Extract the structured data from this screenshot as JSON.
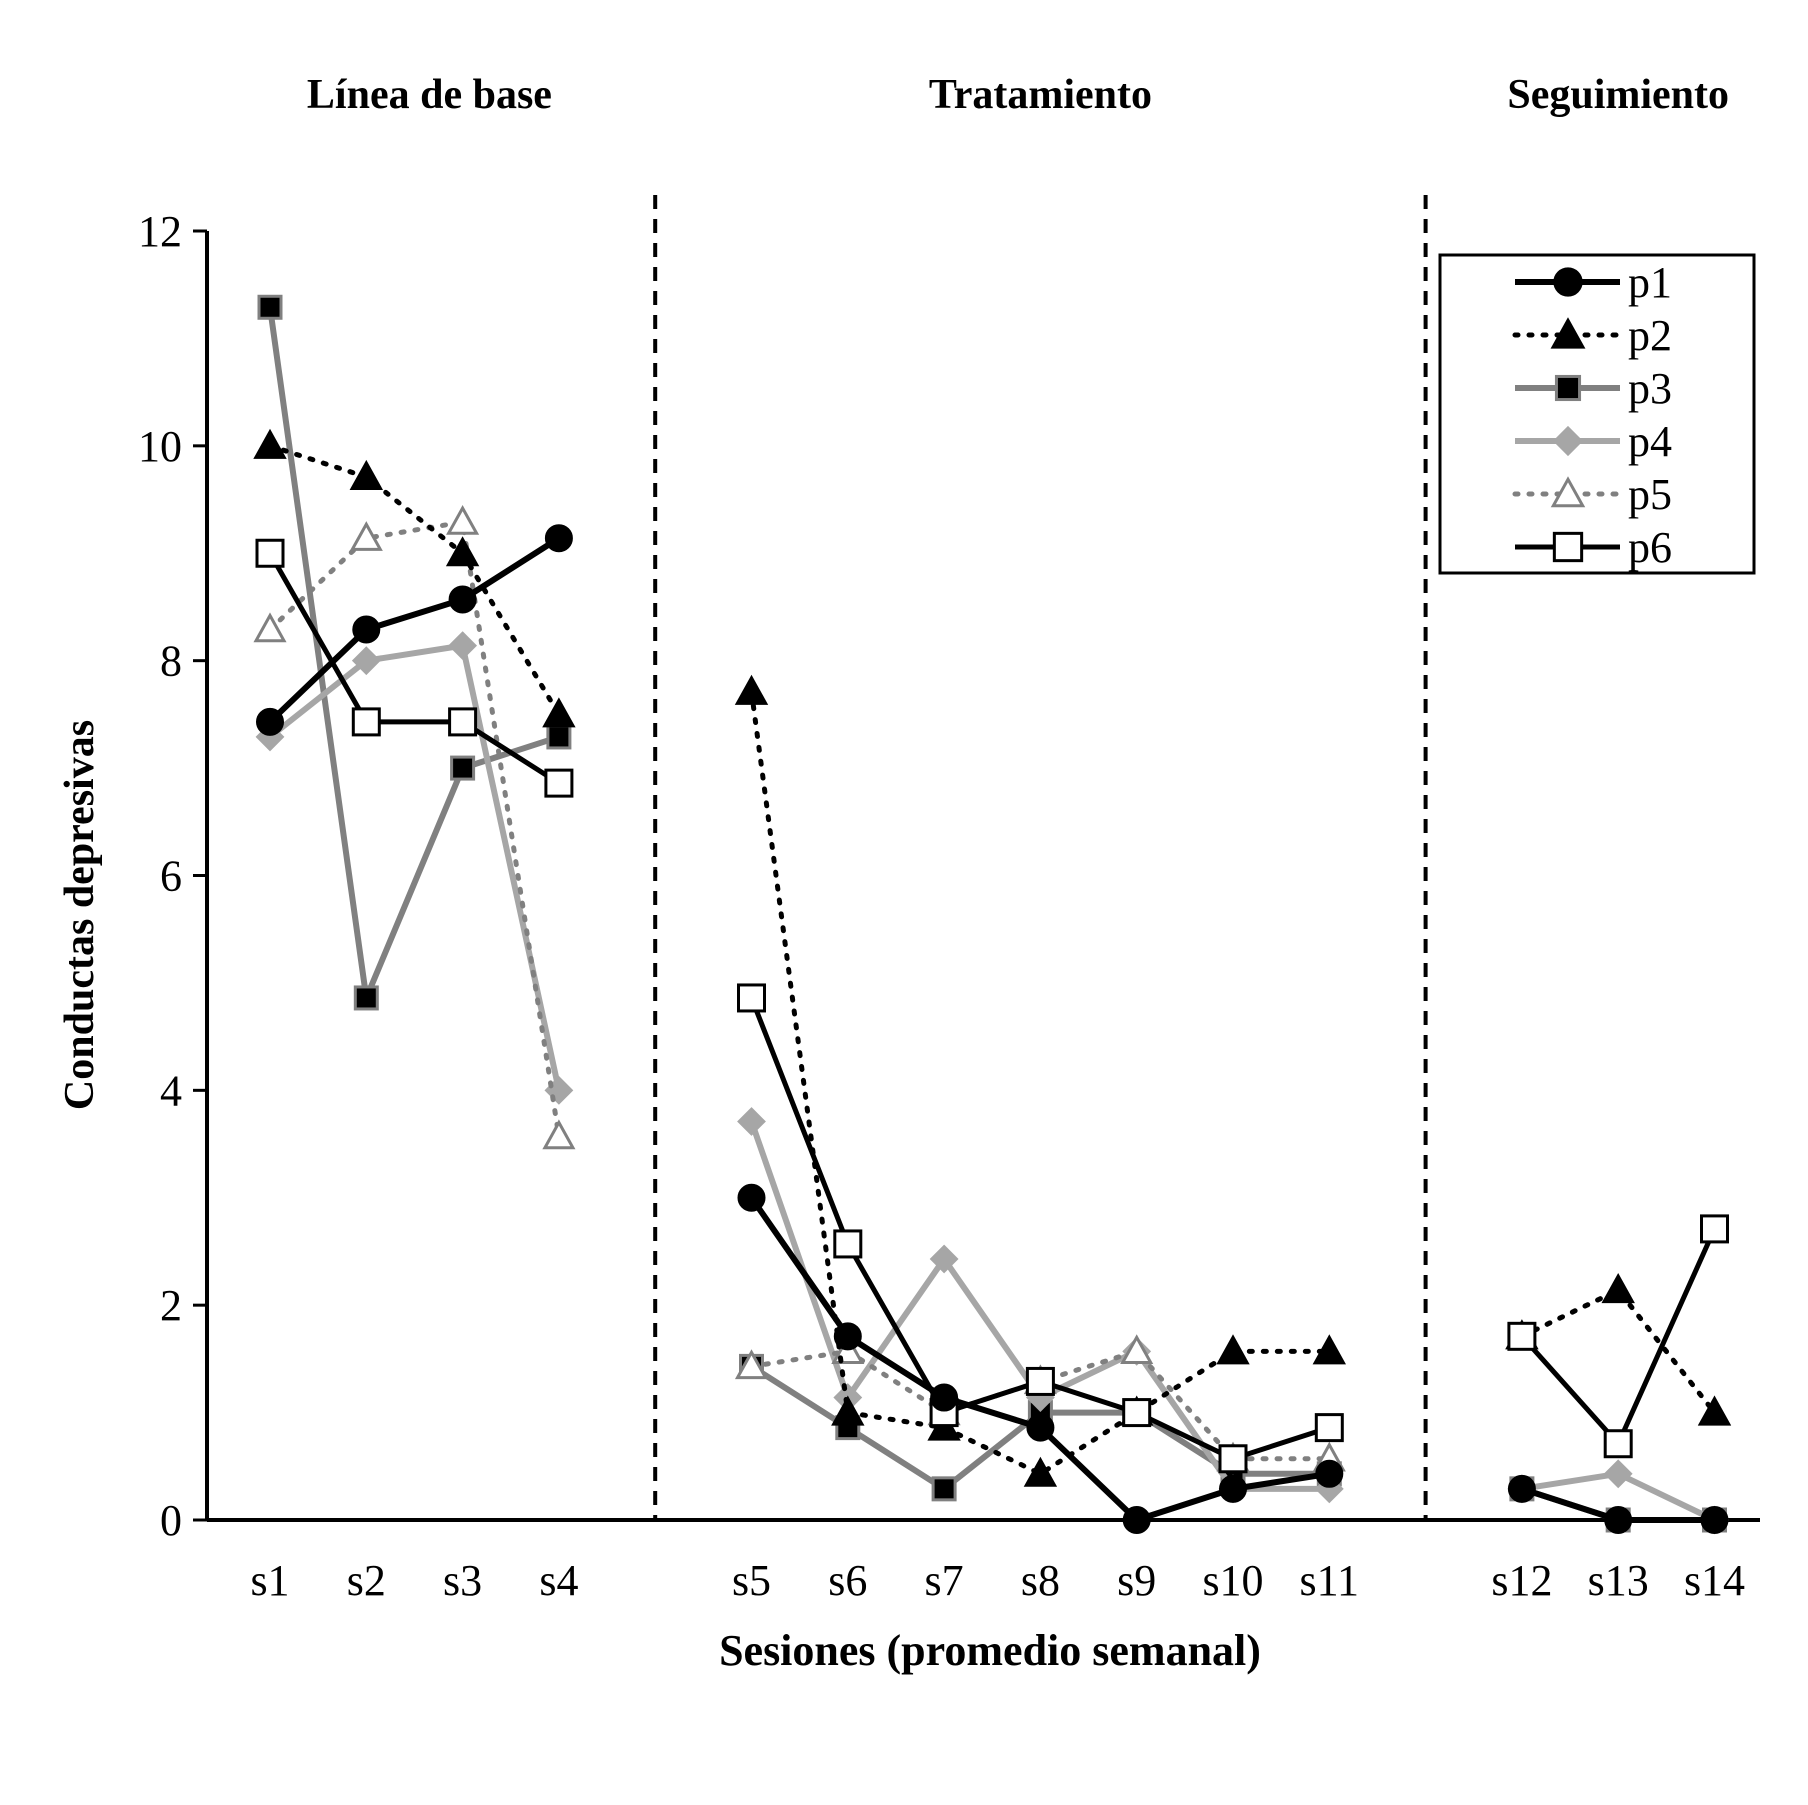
{
  "chart_data": {
    "type": "line",
    "phases": [
      {
        "label": "Línea de base",
        "categories": [
          "s1",
          "s2",
          "s3",
          "s4"
        ]
      },
      {
        "label": "Tratamiento",
        "categories": [
          "s5",
          "s6",
          "s7",
          "s8",
          "s9",
          "s10",
          "s11"
        ]
      },
      {
        "label": "Seguimiento",
        "categories": [
          "s12",
          "s13",
          "s14"
        ]
      }
    ],
    "categories": [
      "s1",
      "s2",
      "s3",
      "s4",
      "s5",
      "s6",
      "s7",
      "s8",
      "s9",
      "s10",
      "s11",
      "s12",
      "s13",
      "s14"
    ],
    "xlabel": "Sesiones (promedio semanal)",
    "ylabel": "Conductas depresivas",
    "ylim": [
      0,
      12
    ],
    "yticks": [
      0,
      2,
      4,
      6,
      8,
      10,
      12
    ],
    "grid": false,
    "legend_position": "top-right",
    "series": [
      {
        "name": "p1",
        "color": "#000000",
        "line": "solid",
        "marker": "circle-filled",
        "values": [
          7.43,
          8.29,
          8.57,
          9.14,
          3.0,
          1.71,
          1.14,
          0.86,
          0.0,
          0.29,
          0.43,
          0.29,
          0.0,
          0.0
        ]
      },
      {
        "name": "p2",
        "color": "#000000",
        "line": "dotted",
        "marker": "triangle-filled",
        "values": [
          10.0,
          9.71,
          9.0,
          7.5,
          7.71,
          1.0,
          0.86,
          0.43,
          1.0,
          1.57,
          1.57,
          1.71,
          2.14,
          1.0
        ]
      },
      {
        "name": "p3",
        "color": "#808080",
        "line": "solid",
        "marker": "square-filled",
        "values": [
          11.29,
          4.86,
          7.0,
          7.29,
          1.43,
          0.86,
          0.29,
          1.0,
          1.0,
          0.43,
          0.43,
          0.29,
          0.0,
          0.0
        ]
      },
      {
        "name": "p4",
        "color": "#a6a6a6",
        "line": "solid",
        "marker": "diamond-filled",
        "values": [
          7.29,
          8.0,
          8.14,
          4.0,
          3.71,
          1.14,
          2.43,
          1.14,
          1.57,
          0.29,
          0.29,
          0.29,
          0.43,
          0.0
        ]
      },
      {
        "name": "p5",
        "color": "#808080",
        "line": "dotted",
        "marker": "triangle-open",
        "values": [
          8.29,
          9.14,
          9.29,
          3.57,
          1.43,
          1.57,
          1.0,
          1.29,
          1.57,
          0.57,
          0.57,
          1.71,
          2.14,
          1.0
        ]
      },
      {
        "name": "p6",
        "color": "#000000",
        "line": "solid",
        "marker": "square-open",
        "values": [
          9.0,
          7.43,
          7.43,
          6.86,
          4.86,
          2.57,
          1.0,
          1.29,
          1.0,
          0.57,
          0.86,
          1.71,
          0.71,
          2.71
        ]
      }
    ]
  }
}
